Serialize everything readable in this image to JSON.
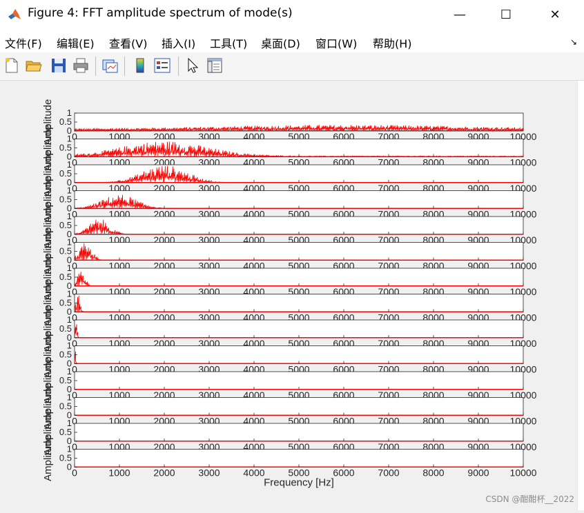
{
  "window": {
    "title": "Figure 4: FFT amplitude spectrum of mode(s)",
    "controls": {
      "minimize": "—",
      "maximize": "☐",
      "close": "✕"
    }
  },
  "menu": [
    "文件(F)",
    "编辑(E)",
    "查看(V)",
    "插入(I)",
    "工具(T)",
    "桌面(D)",
    "窗口(W)",
    "帮助(H)"
  ],
  "toolbar": [
    "new-figure-icon",
    "open-file-icon",
    "save-icon",
    "print-icon",
    "link-plot-icon",
    "colorbar-icon",
    "legend-icon",
    "edit-plot-arrow-icon",
    "property-inspector-icon"
  ],
  "watermark": "CSDN @酣酣杯__2022",
  "chart_data": {
    "type": "line",
    "series_color": "#ff0000",
    "xlabel": "Frequency [Hz]",
    "ylabel": "Amplitude",
    "xlim": [
      0,
      10000
    ],
    "ylim": [
      0,
      1
    ],
    "xticks": [
      0,
      1000,
      2000,
      3000,
      4000,
      5000,
      6000,
      7000,
      8000,
      9000,
      10000
    ],
    "yticks": [
      0,
      0.5,
      1
    ],
    "subplot_count": 14,
    "modes": [
      {
        "mode": 1,
        "spectrum_center_hz": 6000,
        "spectrum_spread_hz": 5000,
        "peak_amplitude": 0.35,
        "floor_amplitude": 0.12
      },
      {
        "mode": 2,
        "spectrum_center_hz": 2000,
        "spectrum_spread_hz": 1700,
        "peak_amplitude": 0.9,
        "floor_amplitude": 0.05
      },
      {
        "mode": 3,
        "spectrum_center_hz": 2000,
        "spectrum_spread_hz": 900,
        "peak_amplitude": 1.0,
        "floor_amplitude": 0.0
      },
      {
        "mode": 4,
        "spectrum_center_hz": 1000,
        "spectrum_spread_hz": 700,
        "peak_amplitude": 0.8,
        "floor_amplitude": 0.0
      },
      {
        "mode": 5,
        "spectrum_center_hz": 550,
        "spectrum_spread_hz": 400,
        "peak_amplitude": 0.9,
        "floor_amplitude": 0.0
      },
      {
        "mode": 6,
        "spectrum_center_hz": 250,
        "spectrum_spread_hz": 250,
        "peak_amplitude": 1.0,
        "floor_amplitude": 0.0
      },
      {
        "mode": 7,
        "spectrum_center_hz": 150,
        "spectrum_spread_hz": 150,
        "peak_amplitude": 1.0,
        "floor_amplitude": 0.0
      },
      {
        "mode": 8,
        "spectrum_center_hz": 80,
        "spectrum_spread_hz": 80,
        "peak_amplitude": 1.0,
        "floor_amplitude": 0.0
      },
      {
        "mode": 9,
        "spectrum_center_hz": 40,
        "spectrum_spread_hz": 40,
        "peak_amplitude": 1.0,
        "floor_amplitude": 0.0
      },
      {
        "mode": 10,
        "spectrum_center_hz": 20,
        "spectrum_spread_hz": 20,
        "peak_amplitude": 1.0,
        "floor_amplitude": 0.0
      },
      {
        "mode": 11,
        "spectrum_center_hz": 10,
        "spectrum_spread_hz": 10,
        "peak_amplitude": 1.0,
        "floor_amplitude": 0.0
      },
      {
        "mode": 12,
        "spectrum_center_hz": 5,
        "spectrum_spread_hz": 5,
        "peak_amplitude": 1.0,
        "floor_amplitude": 0.0
      },
      {
        "mode": 13,
        "spectrum_center_hz": 3,
        "spectrum_spread_hz": 3,
        "peak_amplitude": 1.0,
        "floor_amplitude": 0.0
      },
      {
        "mode": 14,
        "spectrum_center_hz": 2,
        "spectrum_spread_hz": 2,
        "peak_amplitude": 1.0,
        "floor_amplitude": 0.0
      }
    ]
  }
}
